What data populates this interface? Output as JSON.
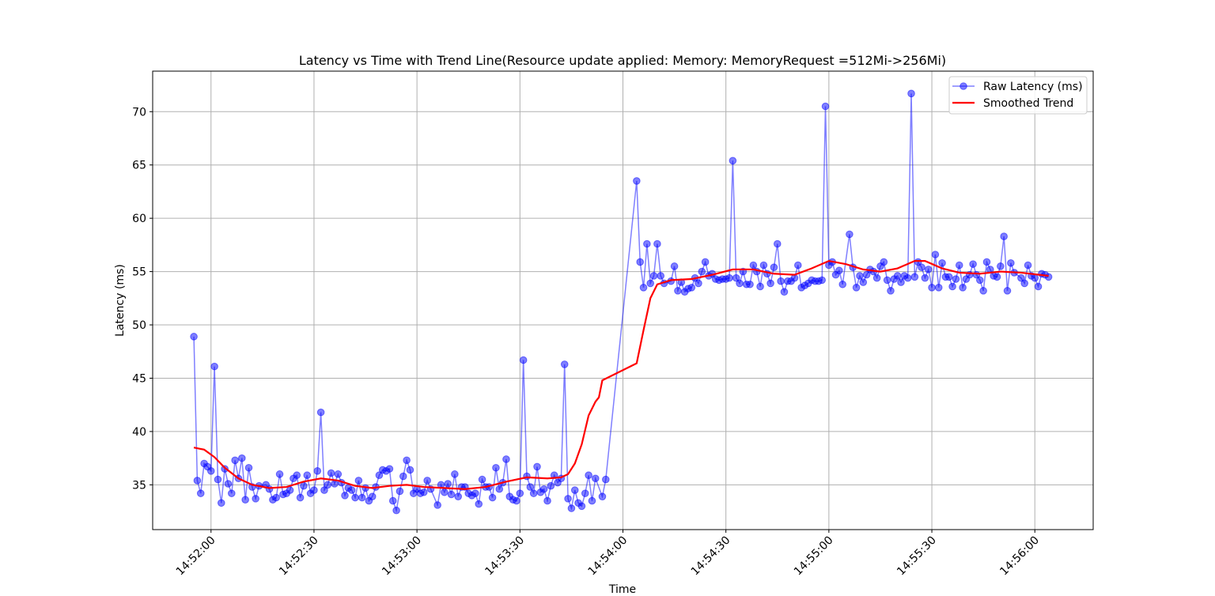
{
  "chart_data": {
    "type": "line",
    "title": "Latency vs Time with Trend Line(Resource update applied: Memory: MemoryRequest =512Mi->256Mi)",
    "xlabel": "Time",
    "ylabel": "Latency (ms)",
    "xlim": [
      "14:51:43",
      "14:56:17"
    ],
    "xticks": [
      "14:52:00",
      "14:52:30",
      "14:53:00",
      "14:53:30",
      "14:54:00",
      "14:54:30",
      "14:55:00",
      "14:55:30",
      "14:56:00"
    ],
    "ylim": [
      30.8,
      73.8
    ],
    "yticks": [
      35,
      40,
      45,
      50,
      55,
      60,
      65,
      70
    ],
    "grid": true,
    "legend": "upper right",
    "series": [
      {
        "name": "Raw Latency (ms)",
        "color": "#0000ff",
        "marker": true,
        "x": [
          "14:51:55",
          "14:51:56",
          "14:51:57",
          "14:51:58",
          "14:51:59",
          "14:52:00",
          "14:52:01",
          "14:52:02",
          "14:52:03",
          "14:52:04",
          "14:52:05",
          "14:52:06",
          "14:52:07",
          "14:52:08",
          "14:52:09",
          "14:52:10",
          "14:52:11",
          "14:52:12",
          "14:52:13",
          "14:52:14",
          "14:52:16",
          "14:52:17",
          "14:52:18",
          "14:52:19",
          "14:52:20",
          "14:52:21",
          "14:52:22",
          "14:52:23",
          "14:52:24",
          "14:52:25",
          "14:52:26",
          "14:52:27",
          "14:52:28",
          "14:52:29",
          "14:52:30",
          "14:52:31",
          "14:52:32",
          "14:52:33",
          "14:52:34",
          "14:52:35",
          "14:52:36",
          "14:52:37",
          "14:52:38",
          "14:52:39",
          "14:52:40",
          "14:52:41",
          "14:52:42",
          "14:52:43",
          "14:52:44",
          "14:52:45",
          "14:52:46",
          "14:52:47",
          "14:52:48",
          "14:52:49",
          "14:52:50",
          "14:52:51",
          "14:52:52",
          "14:52:53",
          "14:52:54",
          "14:52:55",
          "14:52:56",
          "14:52:57",
          "14:52:58",
          "14:52:59",
          "14:53:00",
          "14:53:01",
          "14:53:02",
          "14:53:03",
          "14:53:04",
          "14:53:06",
          "14:53:07",
          "14:53:08",
          "14:53:09",
          "14:53:10",
          "14:53:11",
          "14:53:12",
          "14:53:13",
          "14:53:14",
          "14:53:15",
          "14:53:16",
          "14:53:17",
          "14:53:18",
          "14:53:19",
          "14:53:20",
          "14:53:21",
          "14:53:22",
          "14:53:23",
          "14:53:24",
          "14:53:25",
          "14:53:26",
          "14:53:27",
          "14:53:28",
          "14:53:29",
          "14:53:30",
          "14:53:31",
          "14:53:32",
          "14:53:33",
          "14:53:34",
          "14:53:35",
          "14:53:36",
          "14:53:37",
          "14:53:38",
          "14:53:39",
          "14:53:40",
          "14:53:41",
          "14:53:42",
          "14:53:43",
          "14:53:44",
          "14:53:45",
          "14:53:46",
          "14:53:47",
          "14:53:48",
          "14:53:49",
          "14:53:50",
          "14:53:51",
          "14:53:52",
          "14:53:54",
          "14:53:55",
          "14:54:04",
          "14:54:05",
          "14:54:06",
          "14:54:07",
          "14:54:08",
          "14:54:09",
          "14:54:10",
          "14:54:11",
          "14:54:12",
          "14:54:14",
          "14:54:15",
          "14:54:16",
          "14:54:17",
          "14:54:18",
          "14:54:19",
          "14:54:20",
          "14:54:21",
          "14:54:22",
          "14:54:23",
          "14:54:24",
          "14:54:25",
          "14:54:26",
          "14:54:27",
          "14:54:28",
          "14:54:29",
          "14:54:30",
          "14:54:31",
          "14:54:32",
          "14:54:33",
          "14:54:34",
          "14:54:35",
          "14:54:36",
          "14:54:37",
          "14:54:38",
          "14:54:39",
          "14:54:40",
          "14:54:41",
          "14:54:42",
          "14:54:43",
          "14:54:44",
          "14:54:45",
          "14:54:46",
          "14:54:47",
          "14:54:48",
          "14:54:49",
          "14:54:50",
          "14:54:51",
          "14:54:52",
          "14:54:53",
          "14:54:54",
          "14:54:55",
          "14:54:56",
          "14:54:57",
          "14:54:58",
          "14:54:59",
          "14:55:00",
          "14:55:01",
          "14:55:02",
          "14:55:03",
          "14:55:04",
          "14:55:06",
          "14:55:07",
          "14:55:08",
          "14:55:09",
          "14:55:10",
          "14:55:11",
          "14:55:12",
          "14:55:13",
          "14:55:14",
          "14:55:15",
          "14:55:16",
          "14:55:17",
          "14:55:18",
          "14:55:19",
          "14:55:20",
          "14:55:21",
          "14:55:22",
          "14:55:23",
          "14:55:24",
          "14:55:25",
          "14:55:26",
          "14:55:27",
          "14:55:28",
          "14:55:29",
          "14:55:30",
          "14:55:31",
          "14:55:32",
          "14:55:33",
          "14:55:34",
          "14:55:35",
          "14:55:36",
          "14:55:37",
          "14:55:38",
          "14:55:39",
          "14:55:40",
          "14:55:41",
          "14:55:42",
          "14:55:43",
          "14:55:44",
          "14:55:45",
          "14:55:46",
          "14:55:47",
          "14:55:48",
          "14:55:49",
          "14:55:50",
          "14:55:51",
          "14:55:52",
          "14:55:53",
          "14:55:54",
          "14:55:56",
          "14:55:57",
          "14:55:58",
          "14:55:59",
          "14:56:00",
          "14:56:01",
          "14:56:02",
          "14:56:03",
          "14:56:04"
        ],
        "values": [
          48.9,
          35.4,
          34.2,
          37.0,
          36.7,
          36.3,
          46.1,
          35.5,
          33.3,
          36.5,
          35.1,
          34.2,
          37.3,
          35.6,
          37.5,
          33.6,
          36.6,
          34.8,
          33.7,
          34.9,
          35.0,
          34.6,
          33.6,
          33.8,
          36.0,
          34.1,
          34.2,
          34.5,
          35.6,
          35.9,
          33.8,
          34.9,
          35.9,
          34.2,
          34.5,
          36.3,
          41.8,
          34.5,
          35.0,
          36.1,
          35.1,
          36.0,
          35.2,
          34.0,
          34.7,
          34.5,
          33.8,
          35.4,
          33.8,
          34.7,
          33.5,
          33.9,
          34.8,
          35.9,
          36.4,
          36.3,
          36.5,
          33.5,
          32.6,
          34.4,
          35.8,
          37.3,
          36.4,
          34.2,
          34.6,
          34.2,
          34.3,
          35.4,
          34.6,
          33.1,
          35.0,
          34.3,
          35.1,
          34.1,
          36.0,
          33.9,
          34.8,
          34.8,
          34.2,
          34.0,
          34.2,
          33.2,
          35.5,
          34.8,
          34.8,
          33.8,
          36.6,
          34.6,
          35.2,
          37.4,
          33.9,
          33.6,
          33.5,
          34.2,
          46.7,
          35.8,
          34.8,
          34.2,
          36.7,
          34.3,
          34.6,
          33.5,
          34.9,
          35.9,
          35.2,
          35.6,
          46.3,
          33.7,
          32.8,
          34.5,
          33.3,
          33.0,
          34.2,
          35.9,
          33.5,
          35.6,
          33.9,
          35.5,
          63.5,
          55.9,
          53.5,
          57.6,
          53.9,
          54.6,
          57.6,
          54.6,
          53.9,
          54.1,
          55.5,
          53.2,
          54.0,
          53.1,
          53.4,
          53.5,
          54.4,
          53.9,
          55.0,
          55.9,
          54.6,
          54.8,
          54.3,
          54.2,
          54.3,
          54.3,
          54.4,
          65.4,
          54.4,
          53.9,
          55.0,
          53.8,
          53.8,
          55.6,
          55.0,
          53.6,
          55.6,
          54.8,
          53.9,
          55.4,
          57.6,
          54.1,
          53.1,
          54.1,
          54.1,
          54.4,
          55.6,
          53.5,
          53.7,
          53.9,
          54.2,
          54.1,
          54.1,
          54.2,
          70.5,
          55.6,
          55.9,
          54.7,
          55.1,
          53.8,
          58.5,
          55.4,
          53.5,
          54.6,
          54.0,
          54.7,
          55.2,
          55.0,
          54.4,
          55.5,
          55.9,
          54.2,
          53.2,
          54.3,
          54.6,
          54.0,
          54.6,
          54.4,
          71.7,
          54.5,
          55.9,
          55.4,
          54.4,
          55.2,
          53.5,
          56.6,
          53.5,
          55.8,
          54.5,
          54.5,
          53.6,
          54.3,
          55.6,
          53.5,
          54.3,
          54.7,
          55.7,
          54.7,
          54.2,
          53.2,
          55.9,
          55.2,
          54.6,
          54.5,
          55.5,
          58.3,
          53.2,
          55.8,
          54.9,
          54.4,
          53.9,
          55.6,
          54.6,
          54.4,
          53.6,
          54.8,
          54.7,
          54.5
        ]
      },
      {
        "name": "Smoothed Trend",
        "color": "#ff0000",
        "marker": false,
        "x": [
          "14:51:55",
          "14:51:58",
          "14:52:01",
          "14:52:04",
          "14:52:08",
          "14:52:12",
          "14:52:17",
          "14:52:22",
          "14:52:27",
          "14:52:32",
          "14:52:37",
          "14:52:42",
          "14:52:47",
          "14:52:52",
          "14:52:57",
          "14:53:02",
          "14:53:08",
          "14:53:14",
          "14:53:20",
          "14:53:26",
          "14:53:32",
          "14:53:38",
          "14:53:42",
          "14:53:44",
          "14:53:46",
          "14:53:48",
          "14:53:50",
          "14:53:52",
          "14:53:53",
          "14:53:54",
          "14:54:04",
          "14:54:06",
          "14:54:08",
          "14:54:10",
          "14:54:14",
          "14:54:20",
          "14:54:26",
          "14:54:32",
          "14:54:38",
          "14:54:44",
          "14:54:50",
          "14:54:55",
          "14:55:00",
          "14:55:05",
          "14:55:10",
          "14:55:15",
          "14:55:20",
          "14:55:25",
          "14:55:28",
          "14:55:33",
          "14:55:38",
          "14:55:44",
          "14:55:50",
          "14:55:56",
          "14:56:04"
        ],
        "values": [
          38.5,
          38.3,
          37.6,
          36.6,
          35.6,
          35.0,
          34.7,
          34.8,
          35.3,
          35.6,
          35.4,
          34.9,
          34.7,
          34.9,
          35.0,
          34.8,
          34.7,
          34.6,
          34.8,
          35.3,
          35.7,
          35.6,
          35.7,
          36.0,
          37.0,
          38.8,
          41.5,
          42.8,
          43.2,
          44.8,
          46.4,
          49.5,
          52.5,
          53.8,
          54.2,
          54.3,
          54.7,
          55.2,
          55.2,
          54.8,
          54.7,
          55.3,
          56.0,
          55.7,
          55.2,
          55.0,
          55.3,
          56.0,
          56.0,
          55.3,
          54.9,
          54.8,
          55.0,
          54.9,
          54.6
        ]
      }
    ]
  }
}
